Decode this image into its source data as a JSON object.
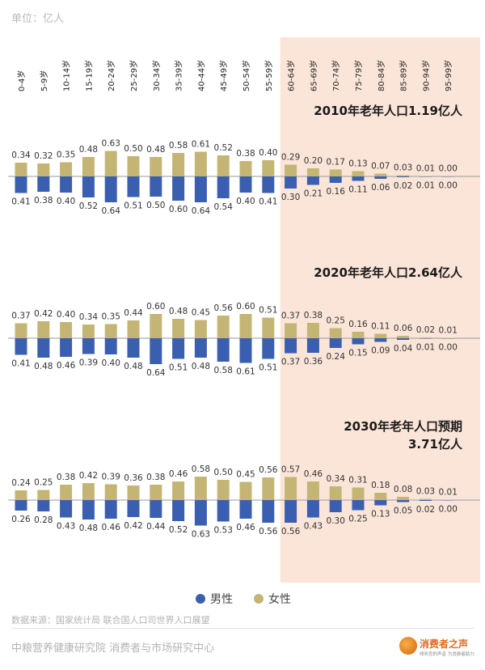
{
  "unit_label": "单位：亿人",
  "source": "数据来源：国家统计局 联合国人口司世界人口展望",
  "org": "中粮营养健康研究院 消费者与市场研究中心",
  "logo": {
    "title": "消费者之声",
    "subtitle": "倾听您的声音 为消费者助力"
  },
  "colors": {
    "male": "#3a5fb0",
    "female": "#c4b574",
    "highlight_bg": "#fbe5d8",
    "axis": "#9a9a9a"
  },
  "chart_data": {
    "type": "bar",
    "orientation": "diverging",
    "categories": [
      "0-4岁",
      "5-9岁",
      "10-14岁",
      "15-19岁",
      "20-24岁",
      "25-29岁",
      "30-34岁",
      "35-39岁",
      "40-44岁",
      "45-49岁",
      "50-54岁",
      "55-59岁",
      "60-64岁",
      "65-69岁",
      "70-74岁",
      "75-79岁",
      "80-84岁",
      "85-89岁",
      "90-94岁",
      "95-99岁"
    ],
    "highlight_from_category": "60-64岁",
    "legend": [
      {
        "key": "male",
        "label": "男性"
      },
      {
        "key": "female",
        "label": "女性"
      }
    ],
    "panels": [
      {
        "title_lines": [
          "2010年老年人口1.19亿人"
        ],
        "female": [
          0.34,
          0.32,
          0.35,
          0.48,
          0.63,
          0.5,
          0.48,
          0.58,
          0.61,
          0.52,
          0.38,
          0.4,
          0.29,
          0.2,
          0.17,
          0.13,
          0.07,
          0.03,
          0.01,
          0.0
        ],
        "male": [
          0.41,
          0.38,
          0.4,
          0.52,
          0.64,
          0.51,
          0.5,
          0.6,
          0.64,
          0.54,
          0.4,
          0.41,
          0.3,
          0.21,
          0.16,
          0.11,
          0.06,
          0.02,
          0.01,
          0.0
        ]
      },
      {
        "title_lines": [
          "2020年老年人口2.64亿人"
        ],
        "female": [
          0.37,
          0.42,
          0.4,
          0.34,
          0.35,
          0.44,
          0.6,
          0.48,
          0.45,
          0.56,
          0.6,
          0.51,
          0.37,
          0.38,
          0.25,
          0.16,
          0.11,
          0.06,
          0.02,
          0.01
        ],
        "male": [
          0.41,
          0.48,
          0.46,
          0.39,
          0.4,
          0.48,
          0.64,
          0.51,
          0.48,
          0.58,
          0.61,
          0.51,
          0.37,
          0.36,
          0.24,
          0.15,
          0.09,
          0.04,
          0.01,
          0.0
        ]
      },
      {
        "title_lines": [
          "2030年老年人口预期",
          "3.71亿人"
        ],
        "female": [
          0.24,
          0.25,
          0.38,
          0.42,
          0.39,
          0.36,
          0.38,
          0.46,
          0.58,
          0.5,
          0.45,
          0.56,
          0.57,
          0.46,
          0.34,
          0.31,
          0.18,
          0.08,
          0.03,
          0.01
        ],
        "male": [
          0.26,
          0.28,
          0.43,
          0.48,
          0.46,
          0.42,
          0.44,
          0.52,
          0.63,
          0.53,
          0.46,
          0.56,
          0.56,
          0.43,
          0.3,
          0.25,
          0.13,
          0.05,
          0.02,
          0.0
        ]
      }
    ]
  }
}
